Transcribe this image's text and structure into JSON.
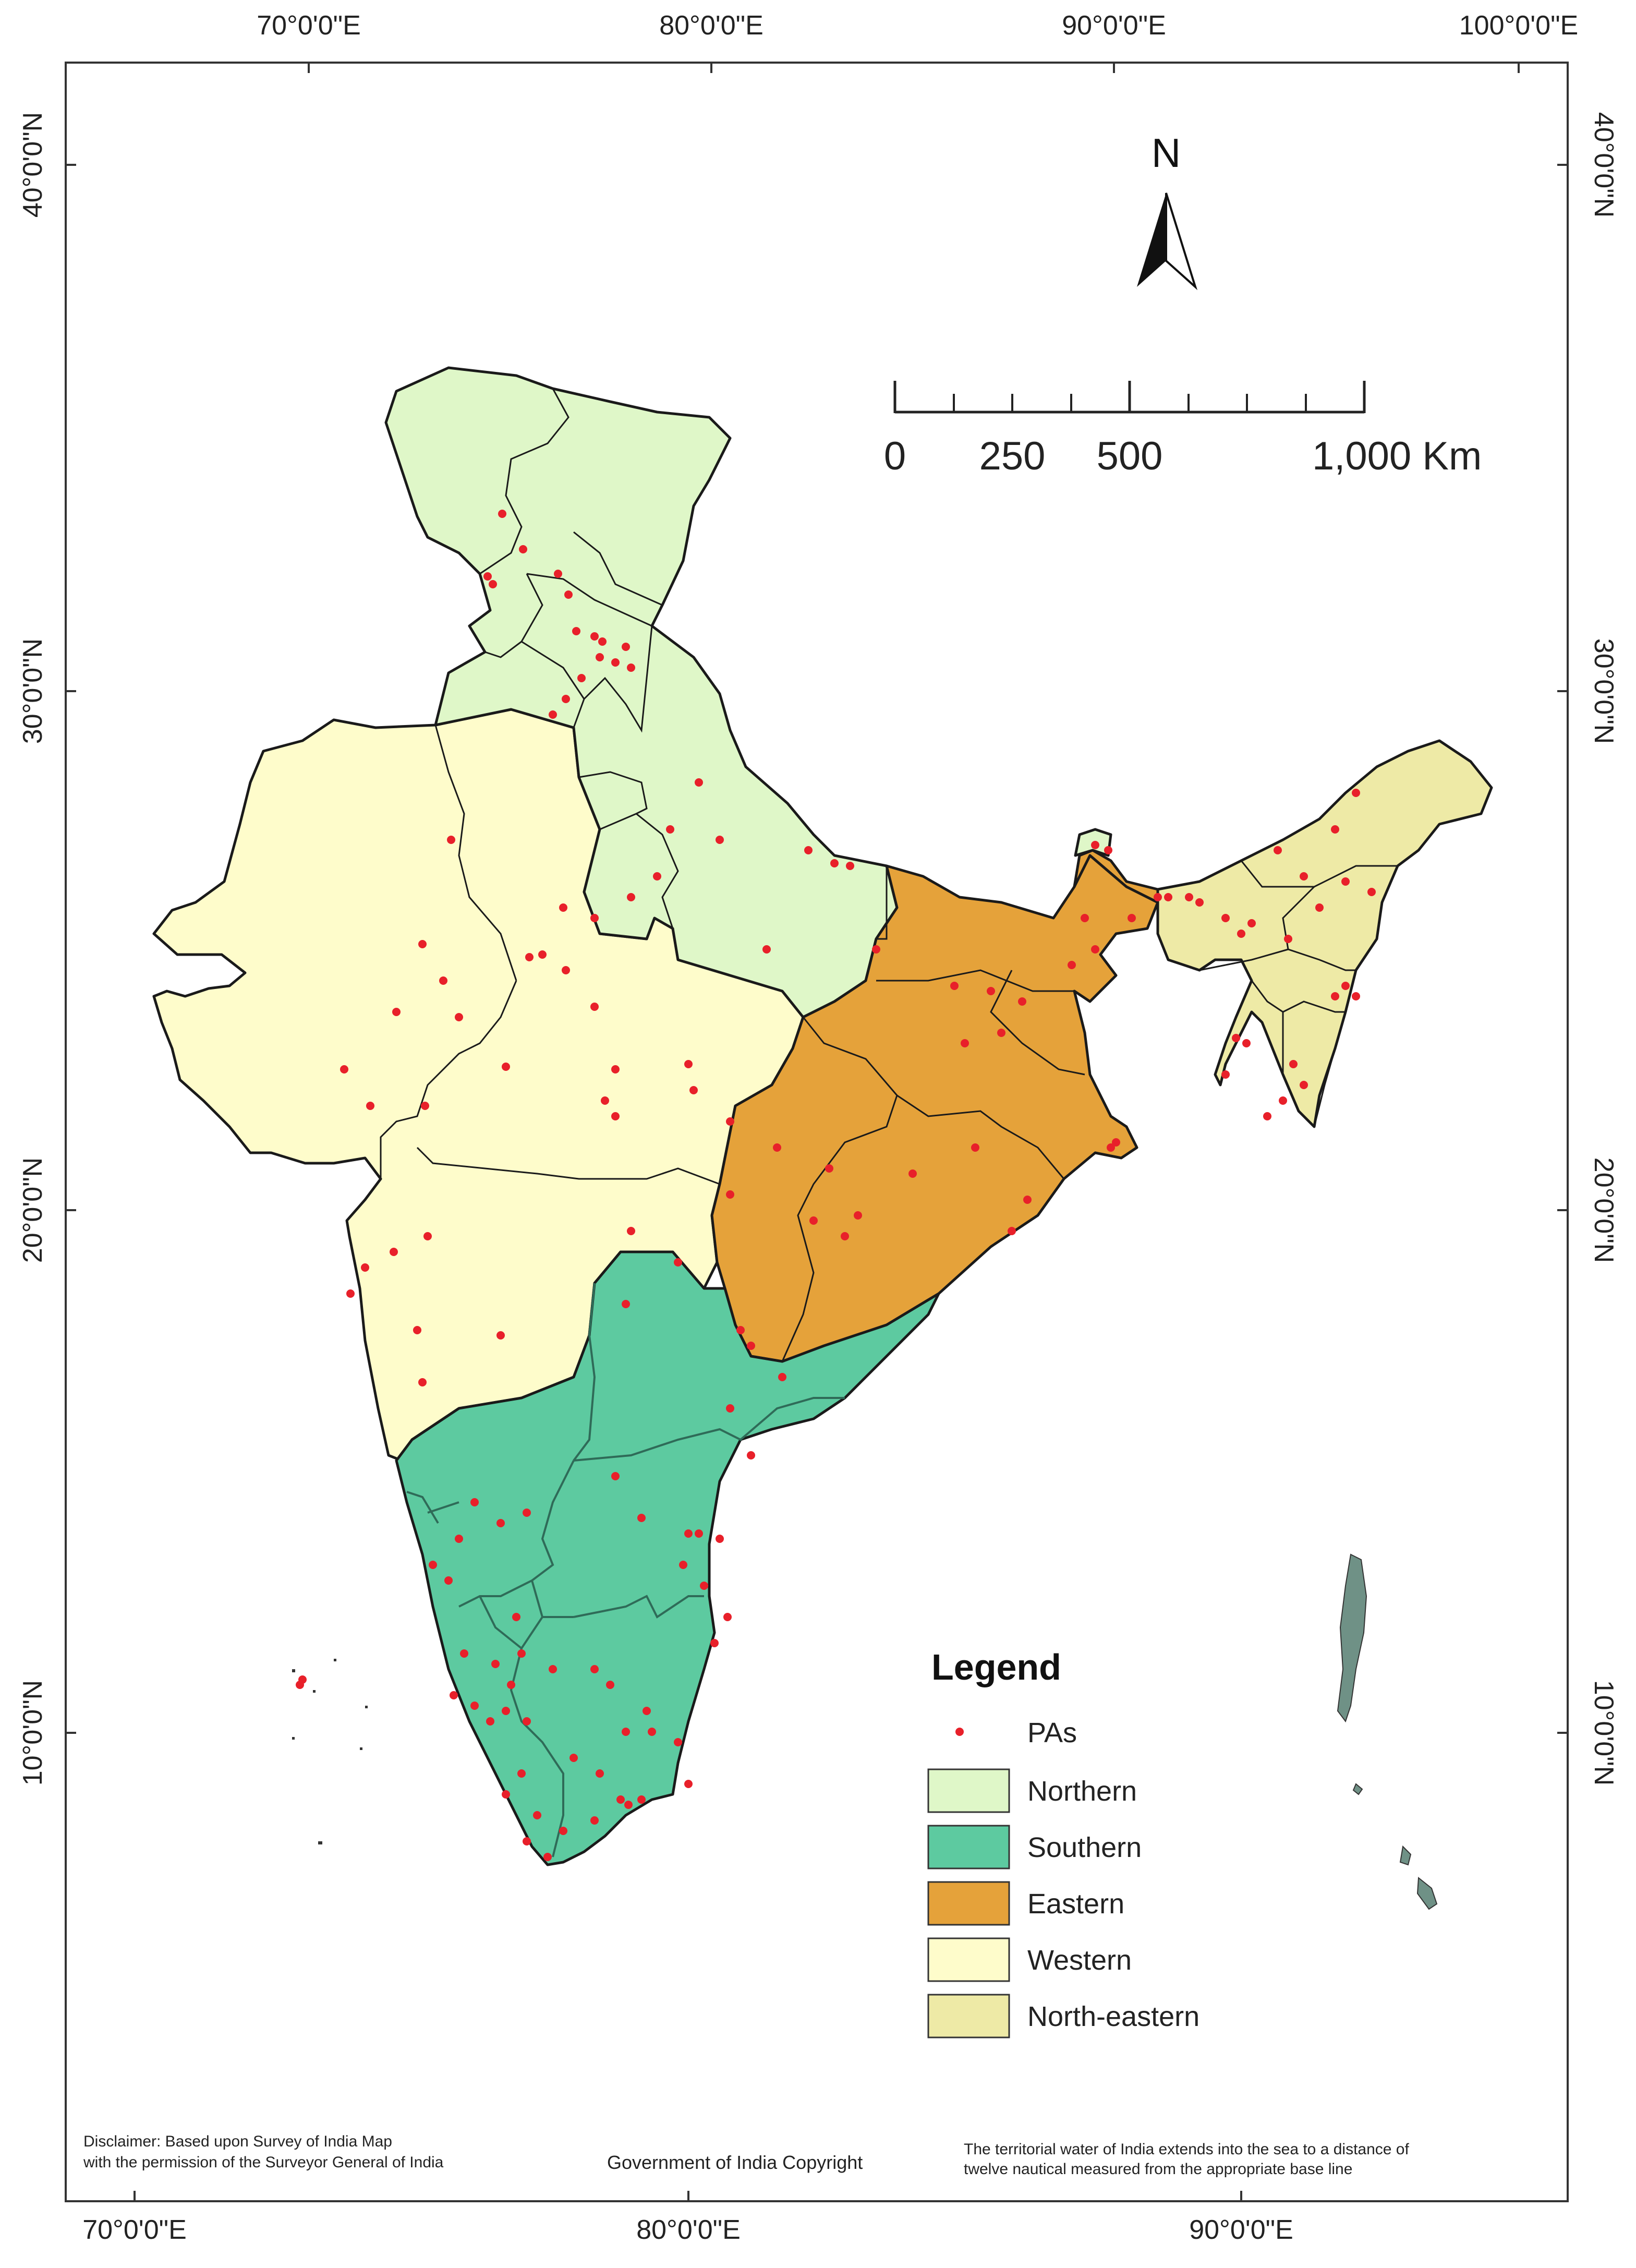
{
  "map": {
    "graticule": {
      "top_lon_labels": [
        "70°0'0\"E",
        "80°0'0\"E",
        "90°0'0\"E",
        "100°0'0\"E"
      ],
      "bottom_lon_labels": [
        "70°0'0\"E",
        "80°0'0\"E",
        "90°0'0\"E"
      ],
      "left_lat_labels": [
        "40°0'0\"N",
        "30°0'0\"N",
        "20°0'0\"N",
        "10°0'0\"N"
      ],
      "right_lat_labels": [
        "40°0'0\"N",
        "30°0'0\"N",
        "20°0'0\"N",
        "10°0'0\"N"
      ]
    },
    "north_arrow": {
      "label": "N"
    },
    "scale_bar": {
      "labels": [
        "0",
        "250",
        "500",
        "1,000 Km"
      ]
    },
    "legend": {
      "title": "Legend",
      "items": [
        {
          "label": "PAs",
          "symbol": "point",
          "color": "#e8202a"
        },
        {
          "label": "Northern",
          "symbol": "patch",
          "color": "#dff7c8"
        },
        {
          "label": "Southern",
          "symbol": "patch",
          "color": "#5dcaa0"
        },
        {
          "label": "Eastern",
          "symbol": "patch",
          "color": "#e5a23a"
        },
        {
          "label": "Western",
          "symbol": "patch",
          "color": "#fefccb"
        },
        {
          "label": "North-eastern",
          "symbol": "patch",
          "color": "#eeeaa6"
        }
      ]
    },
    "footer": {
      "disclaimer_line1": "Disclaimer: Based upon Survey of India Map",
      "disclaimer_line2": "with the permission of the Surveyor General of India",
      "copyright": "Government of India Copyright",
      "territorial_line1": "The territorial water of India extends into the sea to a distance of",
      "territorial_line2": "twelve nautical measured from the appropriate base line"
    }
  }
}
